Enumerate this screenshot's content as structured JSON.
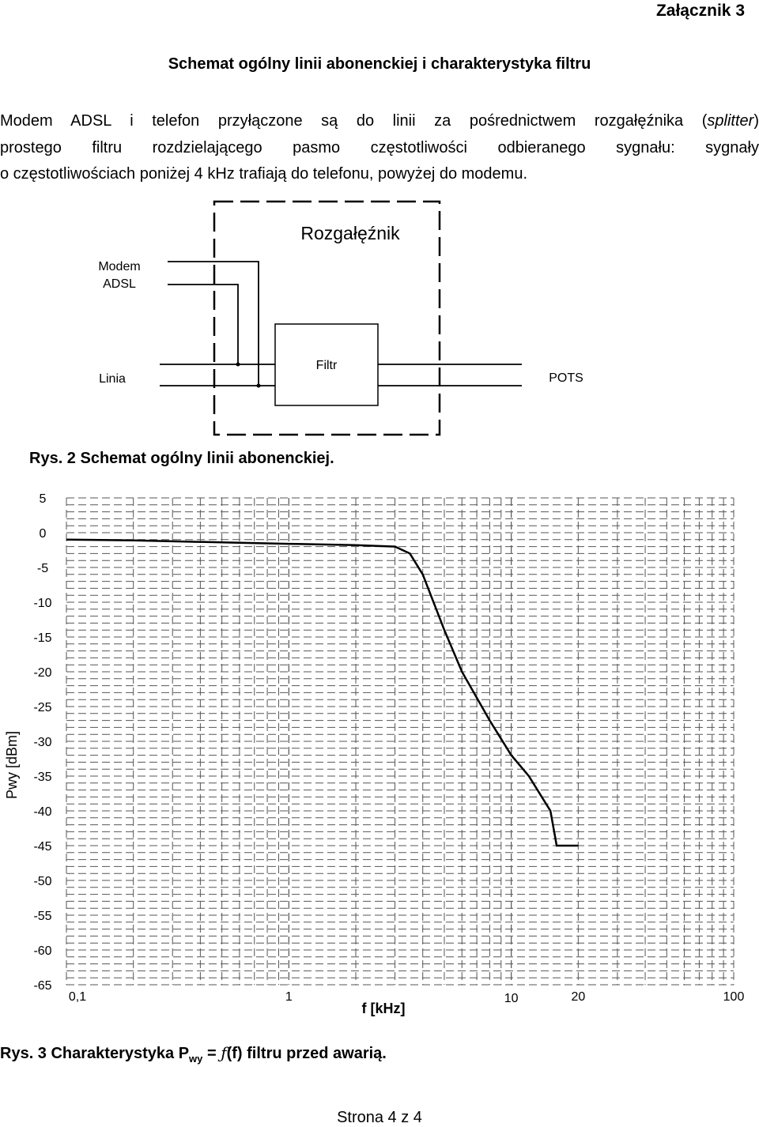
{
  "header": {
    "annex": "Załącznik 3"
  },
  "title": "Schemat ogólny linii abonenckiej i charakterystyka filtru",
  "intro": {
    "line1_pre": "Modem ADSL i telefon przyłączone są do linii za pośrednictwem rozgałęźnika (",
    "line1_italic": "splitter",
    "line1_post": ")",
    "line2": "prostego filtru rozdzielającego pasmo częstotliwości odbieranego sygnału: sygnały",
    "line3": "o częstotliwościach poniżej 4 kHz trafiają do telefonu, powyżej do modemu."
  },
  "diagram": {
    "splitter_label": "Rozgałęźnik",
    "modem_label_1": "Modem",
    "modem_label_2": "ADSL",
    "line_label": "Linia",
    "filter_label": "Filtr",
    "pots_label": "POTS"
  },
  "caption2": "Rys. 2 Schemat ogólny linii abonenckiej.",
  "chart_data": {
    "type": "line",
    "xscale": "log",
    "xlim": [
      0.1,
      100
    ],
    "ylim": [
      -65,
      5
    ],
    "xlabel": "f [kHz]",
    "ylabel": "Pwy [dBm]",
    "xticks": [
      "0,1",
      "1",
      "10",
      "20",
      "100"
    ],
    "xtick_values": [
      0.1,
      1,
      10,
      20,
      100
    ],
    "yticks": [
      5,
      0,
      -5,
      -10,
      -15,
      -20,
      -25,
      -30,
      -35,
      -40,
      -45,
      -50,
      -55,
      -60,
      -65
    ],
    "grid": true,
    "series": [
      {
        "x": [
          0.1,
          0.2,
          0.5,
          1,
          2,
          3,
          3.5,
          4,
          5,
          6,
          8,
          10,
          12,
          15,
          16,
          20
        ],
        "y": [
          -1,
          -1.1,
          -1.4,
          -1.6,
          -1.8,
          -2,
          -3,
          -6,
          -14,
          -20,
          -27,
          -32,
          -35,
          -40,
          -45,
          -45
        ],
        "color": "#000000"
      }
    ]
  },
  "caption3": {
    "pre": "Rys. 3 Charakterystyka P",
    "sub": "wy",
    "eq": " = ",
    "func": "ƒ",
    "post": "(f) filtru przed awarią."
  },
  "footer": "Strona 4 z 4"
}
